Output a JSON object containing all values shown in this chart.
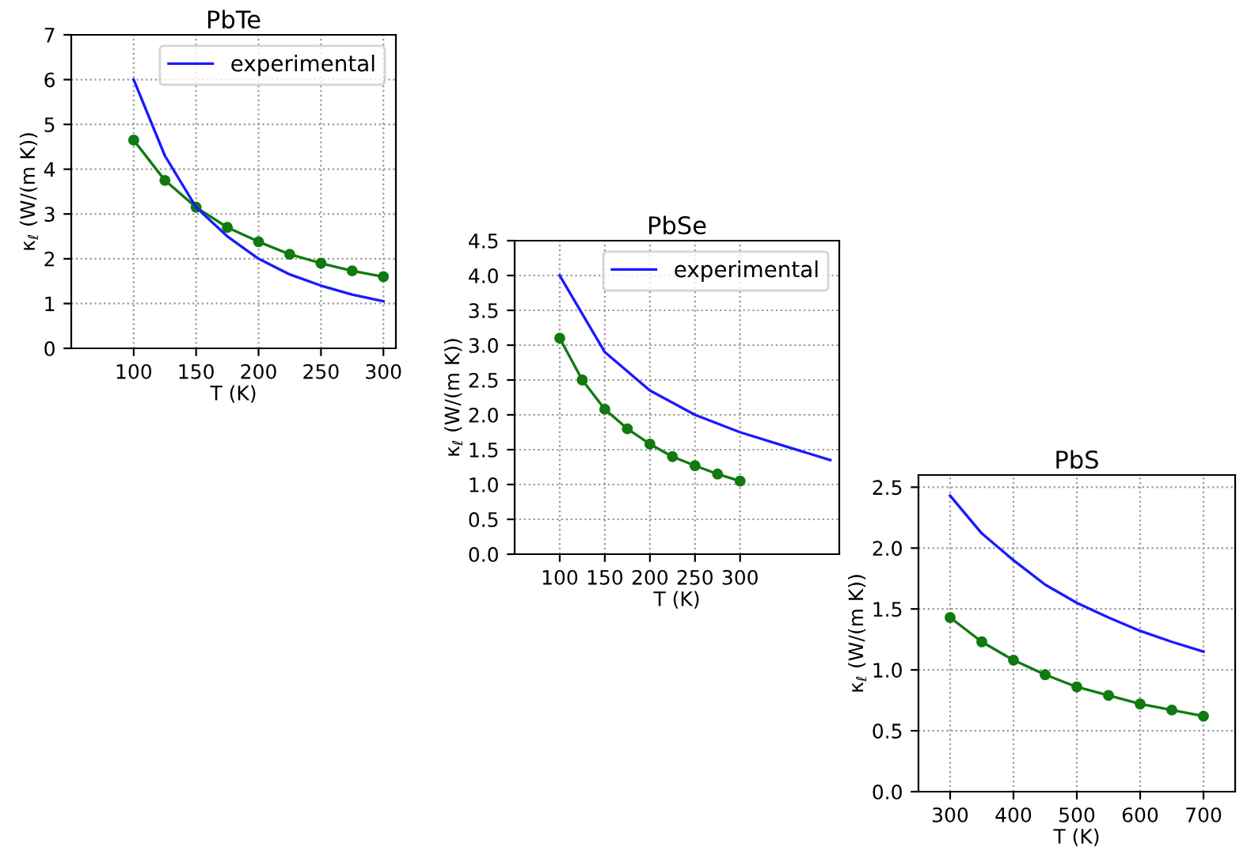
{
  "chart_data": [
    {
      "type": "line",
      "title": "PbTe",
      "xlabel": "T (K)",
      "ylabel": "κ$_{ℓ}$ (W/(m K))",
      "xlim": [
        50,
        310
      ],
      "xticks": [
        100,
        150,
        200,
        250,
        300
      ],
      "ylim": [
        0,
        7
      ],
      "yticks": [
        0,
        1,
        2,
        3,
        4,
        5,
        6,
        7
      ],
      "grid": true,
      "legend": "top right",
      "series": [
        {
          "color": "#117a11",
          "marker": "circle",
          "x": [
            100,
            125,
            150,
            175,
            200,
            225,
            250,
            275,
            300
          ],
          "values": [
            4.65,
            3.75,
            3.15,
            2.7,
            2.38,
            2.1,
            1.9,
            1.73,
            1.6
          ]
        },
        {
          "name": "experimental",
          "color": "#1a1aff",
          "marker": "none",
          "x": [
            100,
            125,
            150,
            175,
            200,
            225,
            250,
            275,
            300
          ],
          "values": [
            6.0,
            4.3,
            3.15,
            2.5,
            2.0,
            1.65,
            1.4,
            1.2,
            1.05
          ]
        }
      ]
    },
    {
      "type": "line",
      "title": "PbSe",
      "xlabel": "T (K)",
      "ylabel": "κ$_{ℓ}$ (W/(m K))",
      "xlim": [
        50,
        410
      ],
      "xticks": [
        100,
        150,
        200,
        250,
        300
      ],
      "ylim": [
        0,
        4.5
      ],
      "yticks": [
        {
          "value": 0,
          "label": "0.0"
        },
        0.5,
        {
          "value": 1,
          "label": "1.0"
        },
        1.5,
        {
          "value": 2,
          "label": "2.0"
        },
        2.5,
        {
          "value": 3,
          "label": "3.0"
        },
        3.5,
        {
          "value": 4,
          "label": "4.0"
        },
        4.5
      ],
      "grid": true,
      "legend": "top right",
      "series": [
        {
          "color": "#117a11",
          "marker": "circle",
          "x": [
            100,
            125,
            150,
            175,
            200,
            225,
            250,
            275,
            300
          ],
          "values": [
            3.1,
            2.5,
            2.08,
            1.8,
            1.58,
            1.4,
            1.27,
            1.15,
            1.05
          ]
        },
        {
          "name": "experimental",
          "color": "#1a1aff",
          "marker": "none",
          "x": [
            100,
            150,
            200,
            250,
            300,
            350,
            400
          ],
          "values": [
            4.0,
            2.9,
            2.35,
            2.0,
            1.75,
            1.55,
            1.35
          ]
        }
      ]
    },
    {
      "type": "line",
      "title": "PbS",
      "xlabel": "T (K)",
      "ylabel": "κ$_{ℓ}$ (W/(m K))",
      "xlim": [
        250,
        750
      ],
      "xticks": [
        300,
        400,
        500,
        600,
        700
      ],
      "ylim": [
        0,
        2.6
      ],
      "yticks": [
        {
          "value": 0,
          "label": "0.0"
        },
        0.5,
        {
          "value": 1,
          "label": "1.0"
        },
        1.5,
        {
          "value": 2,
          "label": "2.0"
        },
        2.5
      ],
      "grid": true,
      "series": [
        {
          "color": "#117a11",
          "marker": "circle",
          "x": [
            300,
            350,
            400,
            450,
            500,
            550,
            600,
            650,
            700
          ],
          "values": [
            1.43,
            1.23,
            1.08,
            0.96,
            0.86,
            0.79,
            0.72,
            0.67,
            0.62
          ]
        },
        {
          "color": "#1a1aff",
          "marker": "none",
          "x": [
            300,
            350,
            400,
            450,
            500,
            550,
            600,
            650,
            700
          ],
          "values": [
            2.43,
            2.12,
            1.9,
            1.7,
            1.55,
            1.43,
            1.32,
            1.23,
            1.15
          ]
        }
      ]
    }
  ]
}
